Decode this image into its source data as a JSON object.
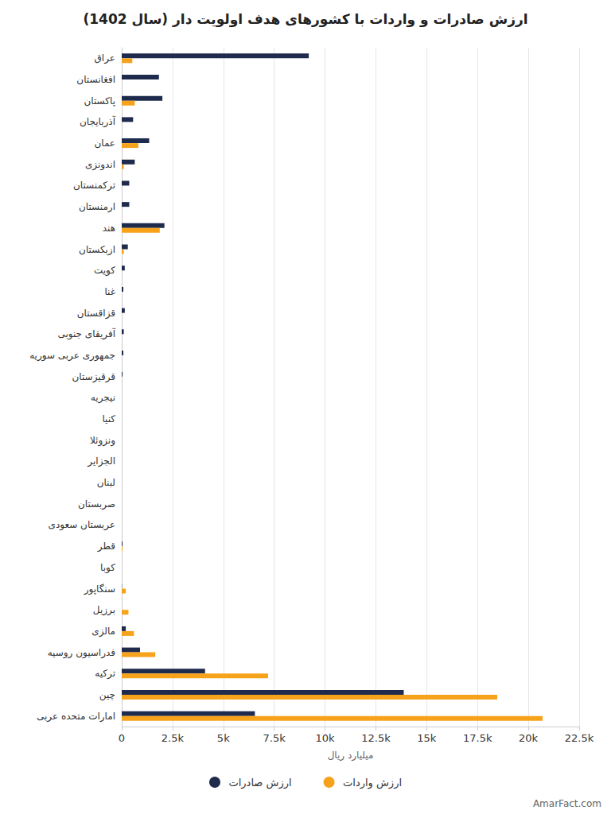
{
  "chart_data": {
    "type": "bar",
    "orientation": "horizontal",
    "title": "ارزش صادرات و واردات با کشورهای هدف اولویت دار (سال 1402)",
    "x_label": "میلیارد ریال",
    "source": "AmarFact.com",
    "categories": [
      "عراق",
      "افغانستان",
      "پاکستان",
      "آذربایجان",
      "عمان",
      "اندونزی",
      "ترکمنستان",
      "ارمنستان",
      "هند",
      "ازبکستان",
      "کویت",
      "غنا",
      "قزاقستان",
      "آفریقای جنوبی",
      "جمهوری عربی سوریه",
      "قرقیزستان",
      "نیجریه",
      "کنیا",
      "ونزوئلا",
      "الجزایر",
      "لبنان",
      "صربستان",
      "عربستان سعودی",
      "قطر",
      "کوبا",
      "سنگاپور",
      "برزیل",
      "مالزی",
      "فدراسیون روسیه",
      "ترکیه",
      "چین",
      "امارات متحده عربی"
    ],
    "series": [
      {
        "name": "ارزش صادرات",
        "color": "#1f2b4d",
        "values": [
          9200,
          1830,
          2000,
          560,
          1350,
          640,
          370,
          370,
          2100,
          300,
          150,
          80,
          150,
          100,
          80,
          40,
          0,
          0,
          0,
          0,
          0,
          0,
          0,
          40,
          0,
          10,
          0,
          200,
          900,
          4100,
          13870,
          6550
        ]
      },
      {
        "name": "ارزش واردات",
        "color": "#f7a21b",
        "values": [
          520,
          0,
          640,
          0,
          820,
          100,
          0,
          0,
          1870,
          100,
          0,
          0,
          0,
          0,
          0,
          0,
          0,
          0,
          0,
          0,
          0,
          0,
          0,
          40,
          0,
          200,
          330,
          600,
          1650,
          7200,
          18470,
          20700
        ]
      }
    ],
    "xlim": [
      0,
      22500
    ],
    "xticks": [
      0,
      {
        "value": 2500,
        "label": "2.5k"
      },
      {
        "value": 5000,
        "label": "5k"
      },
      {
        "value": 7500,
        "label": "7.5k"
      },
      {
        "value": 10000,
        "label": "10k"
      },
      {
        "value": 12500,
        "label": "12.5k"
      },
      {
        "value": 15000,
        "label": "15k"
      },
      {
        "value": 17500,
        "label": "17.5k"
      },
      {
        "value": 20000,
        "label": "20k"
      },
      {
        "value": 22500,
        "label": "22.5k"
      }
    ],
    "grid": true,
    "legend": "bottom"
  }
}
